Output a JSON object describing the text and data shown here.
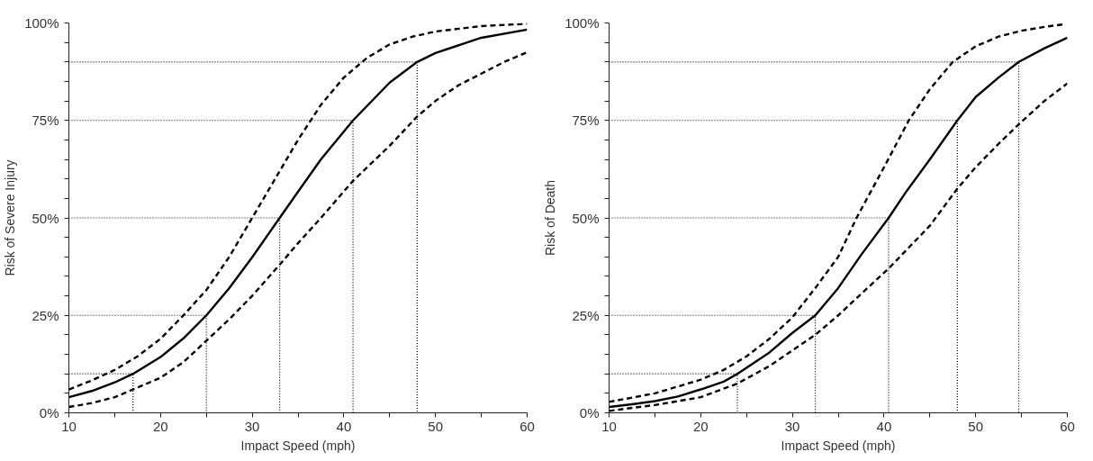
{
  "chart_data": [
    {
      "type": "line",
      "xlabel": "Impact Speed (mph)",
      "ylabel": "Risk of Severe Injury",
      "xlim": [
        10,
        60
      ],
      "ylim": [
        0,
        100
      ],
      "grid": false,
      "marker": "none",
      "xticks": [
        10,
        {
          "value": 15,
          "label": null
        },
        20,
        {
          "value": 25,
          "label": null
        },
        30,
        {
          "value": 35,
          "label": null
        },
        40,
        {
          "value": 45,
          "label": null
        },
        50,
        {
          "value": 55,
          "label": null
        },
        60
      ],
      "yticks": [
        {
          "value": 0,
          "label": "0%"
        },
        {
          "value": 5,
          "label": null
        },
        {
          "value": 10,
          "label": null
        },
        {
          "value": 15,
          "label": null
        },
        {
          "value": 20,
          "label": null
        },
        {
          "value": 25,
          "label": "25%"
        },
        {
          "value": 30,
          "label": null
        },
        {
          "value": 35,
          "label": null
        },
        {
          "value": 40,
          "label": null
        },
        {
          "value": 45,
          "label": null
        },
        {
          "value": 50,
          "label": "50%"
        },
        {
          "value": 55,
          "label": null
        },
        {
          "value": 60,
          "label": null
        },
        {
          "value": 65,
          "label": null
        },
        {
          "value": 70,
          "label": null
        },
        {
          "value": 75,
          "label": "75%"
        },
        {
          "value": 80,
          "label": null
        },
        {
          "value": 85,
          "label": null
        },
        {
          "value": 90,
          "label": null
        },
        {
          "value": 95,
          "label": null
        },
        {
          "value": 100,
          "label": "100%"
        }
      ],
      "series": [
        {
          "color": "#000000",
          "line_style": "solid",
          "x": [
            10,
            12.5,
            15,
            17,
            20,
            22.5,
            25,
            27.5,
            30,
            33,
            35,
            37.5,
            41,
            45,
            48,
            50,
            55,
            60
          ],
          "values": [
            4,
            5.6,
            7.8,
            10,
            14.3,
            19.1,
            25,
            32,
            39.9,
            50,
            56.7,
            65,
            75,
            84.7,
            90,
            92.3,
            96.2,
            98.3
          ]
        },
        {
          "color": "#000000",
          "line_style": "dashed",
          "x": [
            10,
            12.5,
            15,
            17.5,
            20,
            22.5,
            25,
            27.5,
            30,
            32.5,
            35,
            37.5,
            40,
            42.5,
            45,
            47.5,
            50,
            55,
            60
          ],
          "values": [
            6,
            8.3,
            11,
            14.5,
            19,
            25,
            31.5,
            40,
            50,
            60,
            70,
            79,
            86,
            91,
            94.5,
            96.5,
            97.8,
            99.2,
            99.8
          ]
        },
        {
          "color": "#000000",
          "line_style": "dashed",
          "x": [
            10,
            12.5,
            15,
            17,
            20,
            22.5,
            25,
            27.5,
            30,
            33,
            35,
            37.5,
            41,
            45,
            48,
            50,
            52.5,
            55,
            57.5,
            60
          ],
          "values": [
            1.5,
            2.5,
            4,
            6,
            9,
            13,
            18.5,
            24,
            30,
            38,
            43.5,
            50,
            59.5,
            68.5,
            76,
            80,
            84,
            87,
            90,
            92.5
          ]
        },
        {
          "color": "#000000",
          "line_style": "dotted",
          "x": [
            10,
            17,
            17
          ],
          "values": [
            10,
            10,
            0
          ]
        },
        {
          "color": "#000000",
          "line_style": "dotted",
          "x": [
            10,
            25,
            25
          ],
          "values": [
            25,
            25,
            0
          ]
        },
        {
          "color": "#000000",
          "line_style": "dotted",
          "x": [
            10,
            33,
            33
          ],
          "values": [
            50,
            50,
            0
          ]
        },
        {
          "color": "#000000",
          "line_style": "dotted",
          "x": [
            10,
            41,
            41
          ],
          "values": [
            75,
            75,
            0
          ]
        },
        {
          "color": "#000000",
          "line_style": "dotted",
          "x": [
            10,
            48,
            48
          ],
          "values": [
            90,
            90,
            0
          ]
        }
      ]
    },
    {
      "type": "line",
      "xlabel": "Impact Speed (mph)",
      "ylabel": "Risk of Death",
      "xlim": [
        10,
        60
      ],
      "ylim": [
        0,
        100
      ],
      "grid": false,
      "marker": "none",
      "xticks": [
        10,
        {
          "value": 15,
          "label": null
        },
        20,
        {
          "value": 25,
          "label": null
        },
        30,
        {
          "value": 35,
          "label": null
        },
        40,
        {
          "value": 45,
          "label": null
        },
        50,
        {
          "value": 55,
          "label": null
        },
        60
      ],
      "yticks": [
        {
          "value": 0,
          "label": "0%"
        },
        {
          "value": 5,
          "label": null
        },
        {
          "value": 10,
          "label": null
        },
        {
          "value": 15,
          "label": null
        },
        {
          "value": 20,
          "label": null
        },
        {
          "value": 25,
          "label": "25%"
        },
        {
          "value": 30,
          "label": null
        },
        {
          "value": 35,
          "label": null
        },
        {
          "value": 40,
          "label": null
        },
        {
          "value": 45,
          "label": null
        },
        {
          "value": 50,
          "label": "50%"
        },
        {
          "value": 55,
          "label": null
        },
        {
          "value": 60,
          "label": null
        },
        {
          "value": 65,
          "label": null
        },
        {
          "value": 70,
          "label": null
        },
        {
          "value": 75,
          "label": "75%"
        },
        {
          "value": 80,
          "label": null
        },
        {
          "value": 85,
          "label": null
        },
        {
          "value": 90,
          "label": null
        },
        {
          "value": 95,
          "label": null
        },
        {
          "value": 100,
          "label": "100%"
        }
      ],
      "series": [
        {
          "color": "#000000",
          "line_style": "solid",
          "x": [
            10,
            12.5,
            15,
            17.5,
            20,
            22.5,
            24,
            27.5,
            30,
            32.5,
            35,
            37.5,
            40.5,
            42.5,
            45,
            48,
            50,
            52.5,
            54.7,
            57.5,
            60
          ],
          "values": [
            1.5,
            2.2,
            3,
            4.2,
            6,
            8,
            10,
            15.5,
            20.5,
            25,
            32,
            40.5,
            50,
            57,
            65,
            75,
            81,
            86,
            90,
            93.5,
            96.2
          ]
        },
        {
          "color": "#000000",
          "line_style": "dashed",
          "x": [
            10,
            15,
            20,
            22.5,
            25,
            27.5,
            30,
            32.5,
            35,
            37,
            40,
            42.7,
            45,
            47.5,
            50,
            52.5,
            55,
            57.5,
            59.5
          ],
          "values": [
            2.8,
            5,
            8.5,
            11,
            14.5,
            19,
            24.5,
            32,
            40,
            50,
            63,
            75,
            83,
            90,
            94,
            96.5,
            98,
            99,
            99.6
          ]
        },
        {
          "color": "#000000",
          "line_style": "dashed",
          "x": [
            10,
            15,
            20,
            24,
            27.5,
            30,
            32.5,
            35,
            37.5,
            40.5,
            45,
            48,
            50,
            52.5,
            54.7,
            57.5,
            60
          ],
          "values": [
            0.5,
            2,
            4,
            7.5,
            12,
            16,
            20,
            25,
            30.5,
            37,
            48,
            57.5,
            63,
            69,
            74,
            80,
            84.5
          ]
        },
        {
          "color": "#000000",
          "line_style": "dotted",
          "x": [
            10,
            24,
            24
          ],
          "values": [
            10,
            10,
            0
          ]
        },
        {
          "color": "#000000",
          "line_style": "dotted",
          "x": [
            10,
            32.5,
            32.5
          ],
          "values": [
            25,
            25,
            0
          ]
        },
        {
          "color": "#000000",
          "line_style": "dotted",
          "x": [
            10,
            40.5,
            40.5
          ],
          "values": [
            50,
            50,
            0
          ]
        },
        {
          "color": "#000000",
          "line_style": "dotted",
          "x": [
            10,
            48,
            48
          ],
          "values": [
            75,
            75,
            0
          ]
        },
        {
          "color": "#000000",
          "line_style": "dotted",
          "x": [
            10,
            54.7,
            54.7
          ],
          "values": [
            90,
            90,
            0
          ]
        }
      ]
    }
  ]
}
